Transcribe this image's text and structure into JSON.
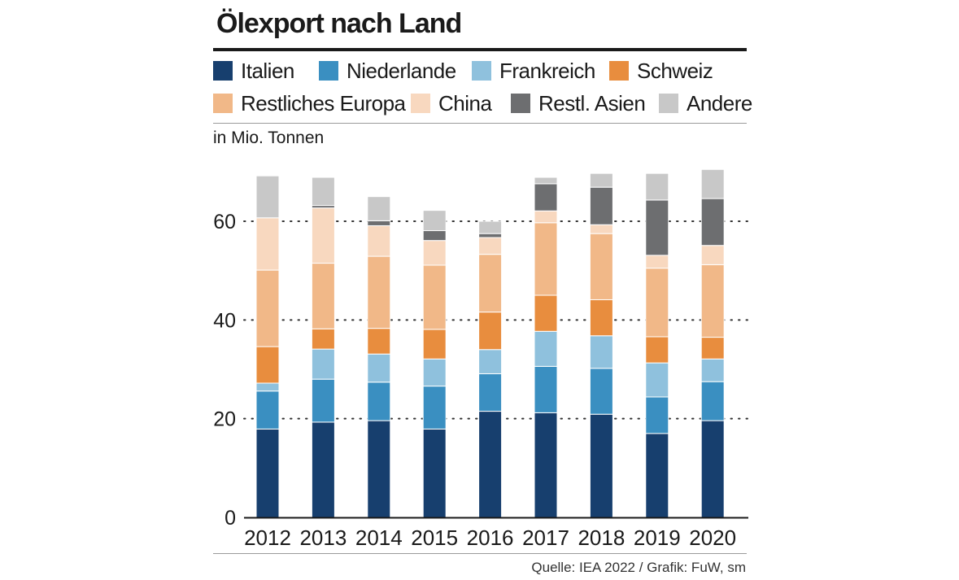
{
  "header": {
    "title": "Ölexport nach Land"
  },
  "unit_label": "in Mio. Tonnen",
  "source": "Quelle: IEA 2022 / Grafik: FuW, sm",
  "chart_data": {
    "type": "bar",
    "stacked": true,
    "title": "Ölexport nach Land",
    "ylabel": "in Mio. Tonnen",
    "xlabel": "",
    "ylim": [
      0,
      70
    ],
    "yticks": [
      0,
      20,
      40,
      60
    ],
    "grid": "dotted horizontal",
    "legend_position": "top",
    "categories": [
      "2012",
      "2013",
      "2014",
      "2015",
      "2016",
      "2017",
      "2018",
      "2019",
      "2020"
    ],
    "series": [
      {
        "name": "Italien",
        "color": "#173f6e",
        "values": [
          17.9,
          19.3,
          19.6,
          17.9,
          21.5,
          21.2,
          20.9,
          17.0,
          19.6
        ]
      },
      {
        "name": "Niederlande",
        "color": "#3a8fc1",
        "values": [
          7.7,
          8.7,
          7.8,
          8.7,
          7.6,
          9.4,
          9.3,
          7.4,
          7.9
        ]
      },
      {
        "name": "Frankreich",
        "color": "#8fc1dd",
        "values": [
          1.6,
          6.1,
          5.7,
          5.5,
          4.9,
          7.1,
          6.6,
          6.9,
          4.6
        ]
      },
      {
        "name": "Schweiz",
        "color": "#e88d3e",
        "values": [
          7.4,
          4.1,
          5.2,
          6.0,
          7.6,
          7.3,
          7.3,
          5.3,
          4.4
        ]
      },
      {
        "name": "Restliches Europa",
        "color": "#f1b888",
        "values": [
          15.5,
          13.3,
          14.6,
          13.0,
          11.7,
          14.7,
          13.4,
          13.9,
          14.7
        ]
      },
      {
        "name": "China",
        "color": "#f8d8bf",
        "values": [
          10.6,
          11.2,
          6.2,
          5.0,
          3.4,
          2.4,
          1.8,
          2.6,
          3.9
        ]
      },
      {
        "name": "Restl. Asien",
        "color": "#6d6e70",
        "values": [
          0.0,
          0.5,
          1.0,
          2.0,
          0.8,
          5.5,
          7.6,
          11.2,
          9.5
        ]
      },
      {
        "name": "Andere",
        "color": "#c8c8c8",
        "values": [
          8.5,
          5.7,
          4.9,
          4.1,
          2.5,
          1.3,
          2.8,
          5.4,
          5.9
        ]
      }
    ]
  }
}
